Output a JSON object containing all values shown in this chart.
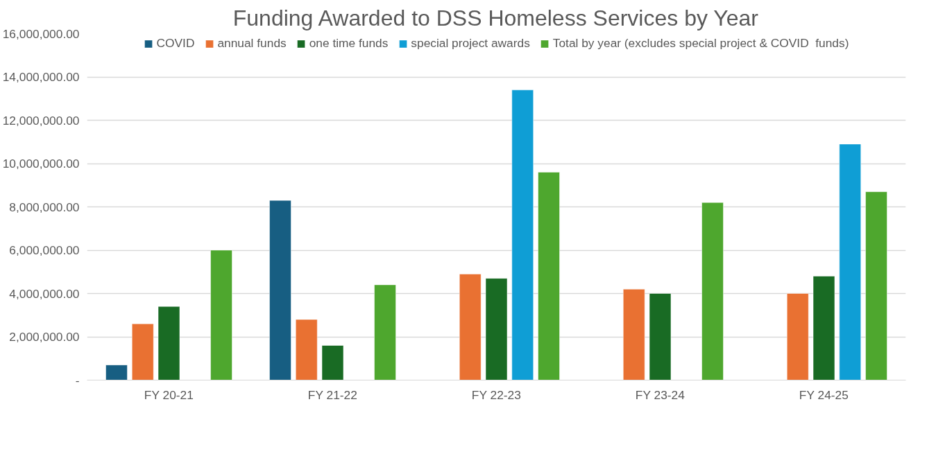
{
  "chart_data": {
    "type": "bar",
    "title": "Funding Awarded to DSS Homeless Services by Year",
    "categories": [
      "FY 20-21",
      "FY 21-22",
      "FY 22-23",
      "FY 23-24",
      "FY 24-25"
    ],
    "series": [
      {
        "name": "COVID",
        "color": "#175e82",
        "values": [
          700000,
          8300000,
          null,
          null,
          null
        ]
      },
      {
        "name": "annual funds",
        "color": "#e97132",
        "values": [
          2600000,
          2800000,
          4900000,
          4200000,
          4000000
        ]
      },
      {
        "name": "one time funds",
        "color": "#196b24",
        "values": [
          3400000,
          1600000,
          4700000,
          4000000,
          4800000
        ]
      },
      {
        "name": "special project awards",
        "color": "#0f9ed5",
        "values": [
          null,
          null,
          13400000,
          null,
          10900000
        ]
      },
      {
        "name": "Total by year (excludes special project & COVID  funds)",
        "color": "#4ea72e",
        "values": [
          6000000,
          4400000,
          9600000,
          8200000,
          8700000
        ]
      }
    ],
    "ylim": [
      0,
      16000000
    ],
    "yticks": [
      {
        "value": 0,
        "label": "-"
      },
      {
        "value": 2000000,
        "label": "2,000,000.00"
      },
      {
        "value": 4000000,
        "label": "4,000,000.00"
      },
      {
        "value": 6000000,
        "label": "6,000,000.00"
      },
      {
        "value": 8000000,
        "label": "8,000,000.00"
      },
      {
        "value": 10000000,
        "label": "10,000,000.00"
      },
      {
        "value": 12000000,
        "label": "12,000,000.00"
      },
      {
        "value": 14000000,
        "label": "14,000,000.00"
      },
      {
        "value": 16000000,
        "label": "16,000,000.00"
      }
    ],
    "grid": "y",
    "legend": "top"
  }
}
